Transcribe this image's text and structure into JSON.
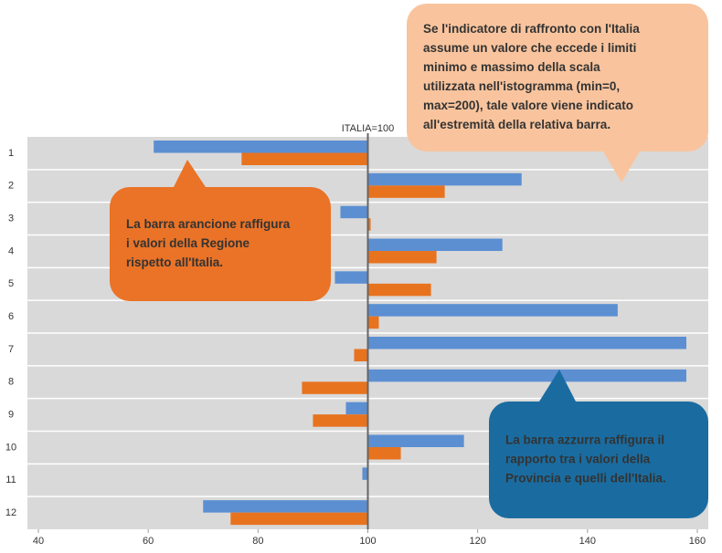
{
  "chart_data": {
    "type": "bar",
    "orientation": "horizontal",
    "baseline_label": "ITALIA=100",
    "baseline": 100,
    "categories": [
      "1",
      "2",
      "3",
      "4",
      "5",
      "6",
      "7",
      "8",
      "9",
      "10",
      "11",
      "12"
    ],
    "series": [
      {
        "name": "Provincia",
        "color": "#5b8fd2",
        "values": [
          61,
          128,
          95,
          124.5,
          94,
          145.5,
          158,
          158,
          96,
          117.5,
          99,
          70
        ]
      },
      {
        "name": "Regione",
        "color": "#e8731f",
        "values": [
          77,
          114,
          100.5,
          112.5,
          111.5,
          102,
          97.5,
          88,
          90,
          106,
          100,
          75
        ]
      }
    ],
    "xlim": [
      38,
      162
    ],
    "xticks": [
      40,
      60,
      80,
      100,
      120,
      140,
      160
    ],
    "annotations": [
      {
        "lines": [
          "Se l'indicatore di raffronto con l'Italia",
          "assume un valore che eccede i limiti",
          "minimo e massimo della scala",
          "utilizzata nell'istogramma (min=0,",
          "max=200), tale valore  viene indicato",
          "all'estremità della relativa barra."
        ]
      },
      {
        "lines": [
          "La barra arancione raffigura",
          "i valori della Regione",
          "rispetto all'Italia."
        ]
      },
      {
        "lines": [
          "La barra azzurra raffigura il",
          "rapporto tra i valori della",
          "Provincia e quelli dell'Italia."
        ]
      }
    ]
  }
}
